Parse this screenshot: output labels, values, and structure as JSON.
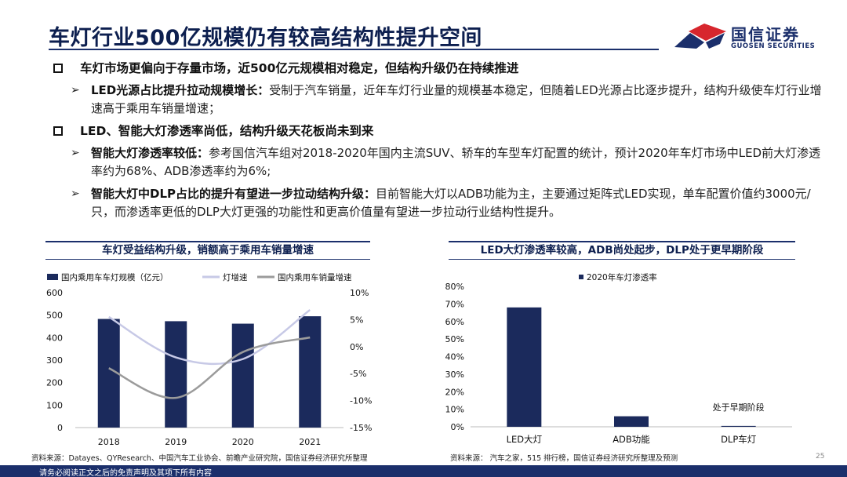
{
  "title": "车灯行业500亿规模仍有较高结构性提升空间",
  "logo": {
    "cn": "国信证券",
    "en": "GUOSEN SECURITIES",
    "brand_color": "#1b2f6b",
    "accent_color": "#d7262d"
  },
  "bullets": {
    "b1": "车灯市场更偏向于存量市场，近500亿元规模相对稳定，但结构升级仍在持续推进",
    "b1_sub1_bold": "LED光源占比提升拉动规模增长：",
    "b1_sub1_text": "受制于汽车销量，近年车灯行业量的规模基本稳定，但随着LED光源占比逐步提升，结构升级使车灯行业增速高于乘用车销量增速；",
    "b2": "LED、智能大灯渗透率尚低，结构升级天花板尚未到来",
    "b2_sub1_bold": "智能大灯渗透率较低：",
    "b2_sub1_text": "参考国信汽车组对2018-2020年国内主流SUV、轿车的车型车灯配置的统计，预计2020年车灯市场中LED前大灯渗透率约为68%、ADB渗透率约为6%;",
    "b2_sub2_bold": "智能大灯中DLP占比的提升有望进一步拉动结构升级：",
    "b2_sub2_text": "目前智能大灯以ADB功能为主，主要通过矩阵式LED实现，单车配置价值约3000元/只，而渗透率更低的DLP大灯更强的功能性和更高价值量有望进一步拉动行业结构性提升。"
  },
  "panel1": {
    "header": "车灯受益结构升级，销额高于乘用车销量增速",
    "source": "资料来源：Datayes、QYResearch、中国汽车工业协会、前瞻产业研究院，国信证券经济研究所整理"
  },
  "panel2": {
    "header": "LED大灯渗透率较高，ADB尚处起步，DLP处于更早期阶段",
    "source": "资料来源： 汽车之家，515 排行榜，国信证券经济研究所整理及预测"
  },
  "page_number": "25",
  "footer": "请务必阅读正文之后的免责声明及其项下所有内容",
  "chart_data": [
    {
      "type": "bar",
      "categories": [
        "2018",
        "2019",
        "2020",
        "2021"
      ],
      "series": [
        {
          "name": "国内乘用车车灯规模（亿元）",
          "axis": "left",
          "kind": "bar",
          "color": "#1b2a5c",
          "values": [
            483,
            473,
            462,
            495
          ]
        },
        {
          "name": "灯增速",
          "axis": "right",
          "kind": "line",
          "color": "#c7c9e6",
          "values": [
            5.5,
            -2.0,
            -2.3,
            6.8
          ]
        },
        {
          "name": "国内乘用车销量增速",
          "axis": "right",
          "kind": "line",
          "color": "#9b9b9b",
          "values": [
            -4.0,
            -9.5,
            -1.0,
            1.7
          ]
        }
      ],
      "yticks_left": [
        "0",
        "100",
        "200",
        "300",
        "400",
        "500",
        "600"
      ],
      "yticks_right": [
        "-15%",
        "-10%",
        "-5%",
        "0%",
        "5%",
        "10%"
      ],
      "ylim_left": [
        0,
        600
      ],
      "ylim_right": [
        -15,
        10
      ],
      "legend_position": "top",
      "grid": false
    },
    {
      "type": "bar",
      "categories": [
        "LED大灯",
        "ADB功能",
        "DLP车灯"
      ],
      "series": [
        {
          "name": "2020年车灯渗透率",
          "color": "#1b2a5c",
          "values": [
            68,
            6,
            0.5
          ]
        }
      ],
      "yticks": [
        "0%",
        "10%",
        "20%",
        "30%",
        "40%",
        "50%",
        "60%",
        "70%",
        "80%"
      ],
      "ylim": [
        0,
        80
      ],
      "annotation": "处于早期阶段",
      "legend_position": "top",
      "grid": false
    }
  ]
}
